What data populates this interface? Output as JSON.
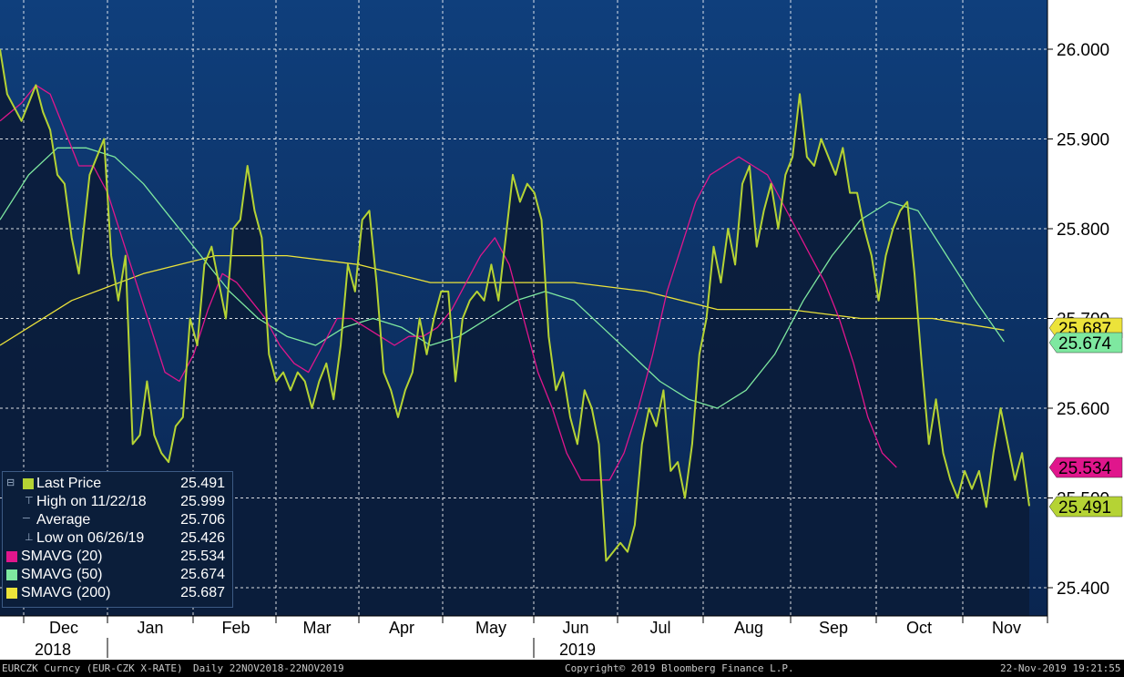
{
  "chart_data": {
    "type": "line",
    "ticker": "EURCZK Curncy (EUR-CZK X-RATE)",
    "period": "Daily 22NOV2018-22NOV2019",
    "copyright": "Copyright© 2019 Bloomberg Finance L.P.",
    "timestamp": "22-Nov-2019 19:21:55",
    "ylim": [
      25.35,
      26.05
    ],
    "y_ticks": [
      "26.000",
      "25.900",
      "25.800",
      "25.700",
      "25.600",
      "25.500",
      "25.400"
    ],
    "x_months": [
      "Dec",
      "Jan",
      "Feb",
      "Mar",
      "Apr",
      "May",
      "Jun",
      "Jul",
      "Aug",
      "Sep",
      "Oct",
      "Nov"
    ],
    "x_years": [
      "2018",
      "2019"
    ],
    "colors": {
      "background": "#0a2a57",
      "area_fill": "#0b1c3a",
      "grid": "#ffffff",
      "last_price": "#b5d334",
      "sma20": "#e0168c",
      "sma50": "#7ee8a0",
      "sma200": "#ece33a"
    },
    "legend": [
      {
        "label": "Last Price",
        "value": "25.491",
        "color": "#b5d334",
        "marker": "⊟"
      },
      {
        "label": "High on 11/22/18",
        "value": "25.999",
        "color": null,
        "marker": "⊤"
      },
      {
        "label": "Average",
        "value": "25.706",
        "color": null,
        "marker": "─"
      },
      {
        "label": "Low on 06/26/19",
        "value": "25.426",
        "color": null,
        "marker": "⊥"
      },
      {
        "label": "SMAVG (20)",
        "value": "25.534",
        "color": "#e0168c",
        "marker": ""
      },
      {
        "label": "SMAVG (50)",
        "value": "25.674",
        "color": "#7ee8a0",
        "marker": ""
      },
      {
        "label": "SMAVG (200)",
        "value": "25.687",
        "color": "#ece33a",
        "marker": ""
      }
    ],
    "right_tags": [
      {
        "value": "25.687",
        "color": "#ece33a"
      },
      {
        "value": "25.674",
        "color": "#7ee8a0"
      },
      {
        "value": "25.534",
        "color": "#e0168c"
      },
      {
        "value": "25.491",
        "color": "#b5d334"
      }
    ],
    "series": [
      {
        "name": "Last Price",
        "points": [
          [
            0,
            26.0
          ],
          [
            2,
            25.95
          ],
          [
            6,
            25.92
          ],
          [
            10,
            25.96
          ],
          [
            12,
            25.93
          ],
          [
            14,
            25.91
          ],
          [
            16,
            25.86
          ],
          [
            18,
            25.85
          ],
          [
            20,
            25.79
          ],
          [
            22,
            25.75
          ],
          [
            25,
            25.86
          ],
          [
            27,
            25.88
          ],
          [
            29,
            25.9
          ],
          [
            31,
            25.77
          ],
          [
            33,
            25.72
          ],
          [
            35,
            25.77
          ],
          [
            37,
            25.56
          ],
          [
            39,
            25.57
          ],
          [
            41,
            25.63
          ],
          [
            43,
            25.57
          ],
          [
            45,
            25.55
          ],
          [
            47,
            25.54
          ],
          [
            49,
            25.58
          ],
          [
            51,
            25.59
          ],
          [
            53,
            25.7
          ],
          [
            55,
            25.67
          ],
          [
            57,
            25.76
          ],
          [
            59,
            25.78
          ],
          [
            61,
            25.74
          ],
          [
            63,
            25.7
          ],
          [
            65,
            25.8
          ],
          [
            67,
            25.81
          ],
          [
            69,
            25.87
          ],
          [
            71,
            25.82
          ],
          [
            73,
            25.79
          ],
          [
            75,
            25.66
          ],
          [
            77,
            25.63
          ],
          [
            79,
            25.64
          ],
          [
            81,
            25.62
          ],
          [
            83,
            25.64
          ],
          [
            85,
            25.63
          ],
          [
            87,
            25.6
          ],
          [
            89,
            25.63
          ],
          [
            91,
            25.65
          ],
          [
            93,
            25.61
          ],
          [
            95,
            25.67
          ],
          [
            97,
            25.76
          ],
          [
            99,
            25.73
          ],
          [
            101,
            25.81
          ],
          [
            103,
            25.82
          ],
          [
            105,
            25.74
          ],
          [
            107,
            25.64
          ],
          [
            109,
            25.62
          ],
          [
            111,
            25.59
          ],
          [
            113,
            25.62
          ],
          [
            115,
            25.64
          ],
          [
            117,
            25.7
          ],
          [
            119,
            25.66
          ],
          [
            121,
            25.7
          ],
          [
            123,
            25.73
          ],
          [
            125,
            25.73
          ],
          [
            127,
            25.63
          ],
          [
            129,
            25.7
          ],
          [
            131,
            25.72
          ],
          [
            133,
            25.73
          ],
          [
            135,
            25.72
          ],
          [
            137,
            25.76
          ],
          [
            139,
            25.72
          ],
          [
            141,
            25.79
          ],
          [
            143,
            25.86
          ],
          [
            145,
            25.83
          ],
          [
            147,
            25.85
          ],
          [
            149,
            25.84
          ],
          [
            151,
            25.81
          ],
          [
            153,
            25.68
          ],
          [
            155,
            25.62
          ],
          [
            157,
            25.64
          ],
          [
            159,
            25.59
          ],
          [
            161,
            25.56
          ],
          [
            163,
            25.62
          ],
          [
            165,
            25.6
          ],
          [
            167,
            25.56
          ],
          [
            169,
            25.43
          ],
          [
            171,
            25.44
          ],
          [
            173,
            25.45
          ],
          [
            175,
            25.44
          ],
          [
            177,
            25.47
          ],
          [
            179,
            25.56
          ],
          [
            181,
            25.6
          ],
          [
            183,
            25.58
          ],
          [
            185,
            25.62
          ],
          [
            187,
            25.53
          ],
          [
            189,
            25.54
          ],
          [
            191,
            25.5
          ],
          [
            193,
            25.56
          ],
          [
            195,
            25.66
          ],
          [
            197,
            25.7
          ],
          [
            199,
            25.78
          ],
          [
            201,
            25.74
          ],
          [
            203,
            25.8
          ],
          [
            205,
            25.76
          ],
          [
            207,
            25.85
          ],
          [
            209,
            25.87
          ],
          [
            211,
            25.78
          ],
          [
            213,
            25.82
          ],
          [
            215,
            25.85
          ],
          [
            217,
            25.8
          ],
          [
            219,
            25.86
          ],
          [
            221,
            25.88
          ],
          [
            223,
            25.95
          ],
          [
            225,
            25.88
          ],
          [
            227,
            25.87
          ],
          [
            229,
            25.9
          ],
          [
            231,
            25.88
          ],
          [
            233,
            25.86
          ],
          [
            235,
            25.89
          ],
          [
            237,
            25.84
          ],
          [
            239,
            25.84
          ],
          [
            241,
            25.8
          ],
          [
            243,
            25.77
          ],
          [
            245,
            25.72
          ],
          [
            247,
            25.77
          ],
          [
            249,
            25.8
          ],
          [
            251,
            25.82
          ],
          [
            253,
            25.83
          ],
          [
            255,
            25.75
          ],
          [
            257,
            25.65
          ],
          [
            259,
            25.56
          ],
          [
            261,
            25.61
          ],
          [
            263,
            25.55
          ],
          [
            265,
            25.52
          ],
          [
            267,
            25.5
          ],
          [
            269,
            25.53
          ],
          [
            271,
            25.51
          ],
          [
            273,
            25.53
          ],
          [
            275,
            25.49
          ],
          [
            277,
            25.55
          ],
          [
            279,
            25.6
          ],
          [
            281,
            25.56
          ],
          [
            283,
            25.52
          ],
          [
            285,
            25.55
          ],
          [
            287,
            25.491
          ]
        ]
      },
      {
        "name": "SMAVG (20)",
        "points": [
          [
            0,
            25.92
          ],
          [
            6,
            25.94
          ],
          [
            10,
            25.96
          ],
          [
            14,
            25.95
          ],
          [
            18,
            25.91
          ],
          [
            22,
            25.87
          ],
          [
            26,
            25.87
          ],
          [
            30,
            25.84
          ],
          [
            34,
            25.79
          ],
          [
            38,
            25.74
          ],
          [
            42,
            25.69
          ],
          [
            46,
            25.64
          ],
          [
            50,
            25.63
          ],
          [
            54,
            25.66
          ],
          [
            58,
            25.71
          ],
          [
            62,
            25.75
          ],
          [
            66,
            25.74
          ],
          [
            70,
            25.72
          ],
          [
            74,
            25.7
          ],
          [
            78,
            25.67
          ],
          [
            82,
            25.65
          ],
          [
            86,
            25.64
          ],
          [
            90,
            25.67
          ],
          [
            94,
            25.7
          ],
          [
            98,
            25.7
          ],
          [
            102,
            25.69
          ],
          [
            106,
            25.68
          ],
          [
            110,
            25.67
          ],
          [
            114,
            25.68
          ],
          [
            118,
            25.68
          ],
          [
            122,
            25.69
          ],
          [
            126,
            25.71
          ],
          [
            130,
            25.74
          ],
          [
            134,
            25.77
          ],
          [
            138,
            25.79
          ],
          [
            142,
            25.76
          ],
          [
            146,
            25.7
          ],
          [
            150,
            25.64
          ],
          [
            154,
            25.6
          ],
          [
            158,
            25.55
          ],
          [
            162,
            25.52
          ],
          [
            166,
            25.52
          ],
          [
            170,
            25.52
          ],
          [
            174,
            25.55
          ],
          [
            178,
            25.6
          ],
          [
            182,
            25.66
          ],
          [
            186,
            25.73
          ],
          [
            190,
            25.78
          ],
          [
            194,
            25.83
          ],
          [
            198,
            25.86
          ],
          [
            202,
            25.87
          ],
          [
            206,
            25.88
          ],
          [
            210,
            25.87
          ],
          [
            214,
            25.86
          ],
          [
            218,
            25.83
          ],
          [
            222,
            25.8
          ],
          [
            226,
            25.77
          ],
          [
            230,
            25.74
          ],
          [
            234,
            25.7
          ],
          [
            238,
            25.65
          ],
          [
            242,
            25.59
          ],
          [
            246,
            25.55
          ],
          [
            250,
            25.534
          ]
        ]
      },
      {
        "name": "SMAVG (50)",
        "points": [
          [
            0,
            25.81
          ],
          [
            8,
            25.86
          ],
          [
            16,
            25.89
          ],
          [
            24,
            25.89
          ],
          [
            32,
            25.88
          ],
          [
            40,
            25.85
          ],
          [
            48,
            25.81
          ],
          [
            56,
            25.77
          ],
          [
            64,
            25.73
          ],
          [
            72,
            25.7
          ],
          [
            80,
            25.68
          ],
          [
            88,
            25.67
          ],
          [
            96,
            25.69
          ],
          [
            104,
            25.7
          ],
          [
            112,
            25.69
          ],
          [
            120,
            25.67
          ],
          [
            128,
            25.68
          ],
          [
            136,
            25.7
          ],
          [
            144,
            25.72
          ],
          [
            152,
            25.73
          ],
          [
            160,
            25.72
          ],
          [
            168,
            25.69
          ],
          [
            176,
            25.66
          ],
          [
            184,
            25.63
          ],
          [
            192,
            25.61
          ],
          [
            200,
            25.6
          ],
          [
            208,
            25.62
          ],
          [
            216,
            25.66
          ],
          [
            224,
            25.72
          ],
          [
            232,
            25.77
          ],
          [
            240,
            25.81
          ],
          [
            248,
            25.83
          ],
          [
            256,
            25.82
          ],
          [
            264,
            25.77
          ],
          [
            272,
            25.72
          ],
          [
            280,
            25.674
          ]
        ]
      },
      {
        "name": "SMAVG (200)",
        "points": [
          [
            0,
            25.67
          ],
          [
            20,
            25.72
          ],
          [
            40,
            25.75
          ],
          [
            60,
            25.77
          ],
          [
            80,
            25.77
          ],
          [
            100,
            25.76
          ],
          [
            120,
            25.74
          ],
          [
            140,
            25.74
          ],
          [
            160,
            25.74
          ],
          [
            180,
            25.73
          ],
          [
            200,
            25.71
          ],
          [
            220,
            25.71
          ],
          [
            240,
            25.7
          ],
          [
            260,
            25.7
          ],
          [
            280,
            25.687
          ]
        ]
      }
    ]
  }
}
